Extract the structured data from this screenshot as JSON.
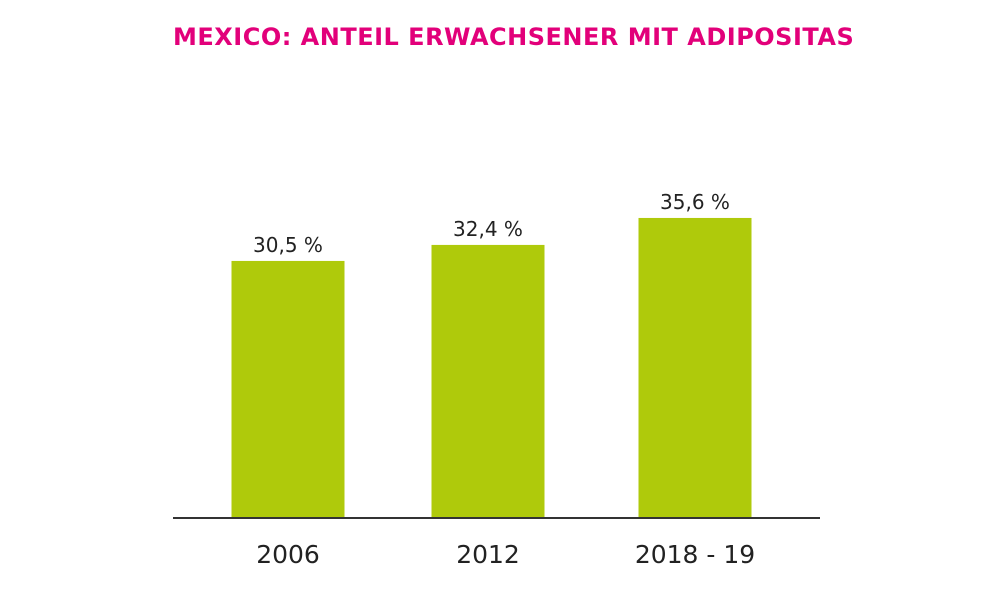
{
  "chart_data": {
    "type": "bar",
    "title": "MEXICO: ANTEIL ERWACHSENER MIT ADIPOSITAS",
    "categories": [
      "2006",
      "2012",
      "2018 - 19"
    ],
    "values": [
      30.5,
      32.4,
      35.6
    ],
    "value_labels": [
      "30,5 %",
      "32,4 %",
      "35,6 %"
    ],
    "xlabel": "",
    "ylabel": "",
    "ylim": [
      0,
      43.9
    ],
    "grid": false,
    "legend": "none",
    "colors": {
      "bar": "#AFCA0B",
      "title": "#E2007A",
      "axis": "#333333"
    }
  }
}
